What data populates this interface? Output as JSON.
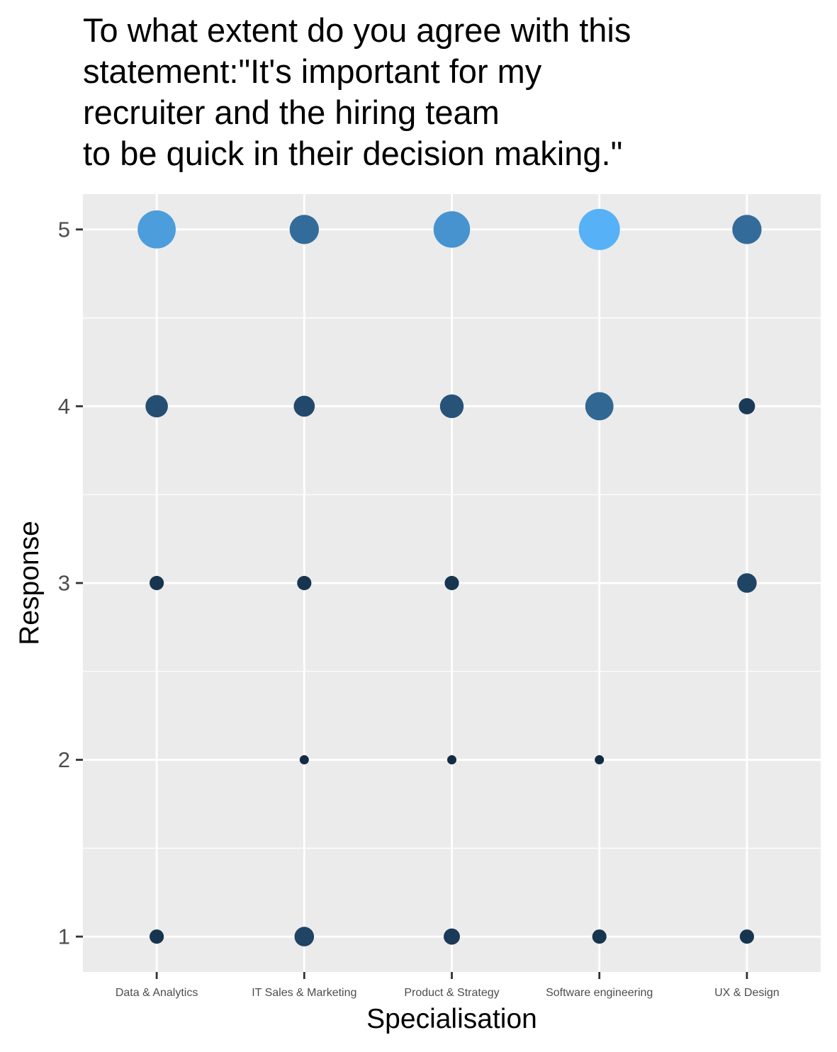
{
  "chart_data": {
    "type": "scatter",
    "title_lines": [
      "To what extent do you agree with this",
      "statement:\"It's important for my",
      "recruiter and the hiring team",
      "to be quick in their decision making.\""
    ],
    "xlabel": "Specialisation",
    "ylabel": "Response",
    "categories": [
      "Data & Analytics",
      "IT Sales & Marketing",
      "Product & Strategy",
      "Software engineering",
      "UX & Design"
    ],
    "y_ticks": [
      1,
      2,
      3,
      4,
      5
    ],
    "ylim": [
      0.8,
      5.2
    ],
    "grid": true,
    "legend": "none",
    "colors": {
      "panel_background": "#EBEBEB",
      "grid": "#FFFFFF",
      "low": "#132B43",
      "high": "#56B1F7"
    },
    "points": [
      {
        "x": "Data & Analytics",
        "y": 5,
        "count": 24
      },
      {
        "x": "Data & Analytics",
        "y": 4,
        "count": 8
      },
      {
        "x": "Data & Analytics",
        "y": 3,
        "count": 3
      },
      {
        "x": "Data & Analytics",
        "y": 1,
        "count": 3
      },
      {
        "x": "IT Sales & Marketing",
        "y": 5,
        "count": 14
      },
      {
        "x": "IT Sales & Marketing",
        "y": 4,
        "count": 7
      },
      {
        "x": "IT Sales & Marketing",
        "y": 3,
        "count": 3
      },
      {
        "x": "IT Sales & Marketing",
        "y": 2,
        "count": 1
      },
      {
        "x": "IT Sales & Marketing",
        "y": 1,
        "count": 6
      },
      {
        "x": "Product & Strategy",
        "y": 5,
        "count": 22
      },
      {
        "x": "Product & Strategy",
        "y": 4,
        "count": 9
      },
      {
        "x": "Product & Strategy",
        "y": 3,
        "count": 3
      },
      {
        "x": "Product & Strategy",
        "y": 2,
        "count": 1
      },
      {
        "x": "Product & Strategy",
        "y": 1,
        "count": 4
      },
      {
        "x": "Software engineering",
        "y": 5,
        "count": 28
      },
      {
        "x": "Software engineering",
        "y": 4,
        "count": 13
      },
      {
        "x": "Software engineering",
        "y": 2,
        "count": 1
      },
      {
        "x": "Software engineering",
        "y": 1,
        "count": 3
      },
      {
        "x": "UX & Design",
        "y": 5,
        "count": 14
      },
      {
        "x": "UX & Design",
        "y": 4,
        "count": 4
      },
      {
        "x": "UX & Design",
        "y": 3,
        "count": 6
      },
      {
        "x": "UX & Design",
        "y": 1,
        "count": 3
      }
    ]
  }
}
